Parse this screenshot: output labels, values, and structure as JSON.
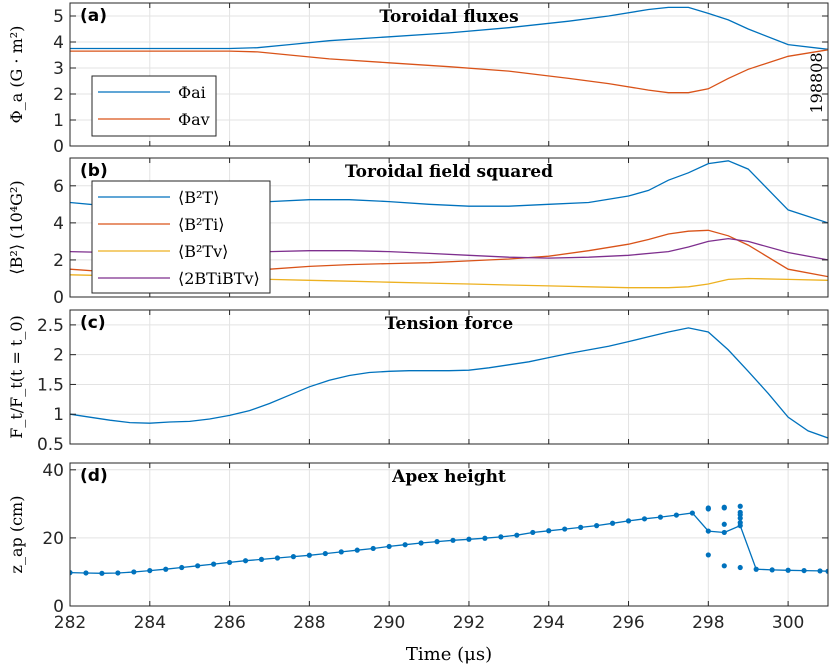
{
  "chart_data": [
    {
      "type": "line",
      "panel_label": "(a)",
      "title": "Toroidal fluxes",
      "ylabel": "Φ_a (G · m²)",
      "ylim": [
        0,
        5.5
      ],
      "yticks": [
        0,
        1,
        2,
        3,
        4,
        5
      ],
      "xlim": [
        282,
        301
      ],
      "annotation": "198808",
      "legend": "top-left",
      "series": [
        {
          "name": "Φ_ai",
          "legend_label": "Φai",
          "color": "#0072BD",
          "x": [
            282,
            283,
            284,
            285,
            286,
            286.7,
            287.5,
            288.5,
            290,
            291.5,
            293,
            294.5,
            295.5,
            296.5,
            297,
            297.5,
            298,
            298.5,
            299,
            300,
            301
          ],
          "y": [
            3.75,
            3.75,
            3.75,
            3.75,
            3.75,
            3.78,
            3.9,
            4.05,
            4.2,
            4.35,
            4.55,
            4.8,
            5.0,
            5.25,
            5.33,
            5.33,
            5.1,
            4.85,
            4.5,
            3.9,
            3.72
          ]
        },
        {
          "name": "Φ_av",
          "legend_label": "Φav",
          "color": "#D95319",
          "x": [
            282,
            283,
            284,
            285,
            286,
            286.7,
            287.5,
            288.5,
            290,
            291.5,
            293,
            294.5,
            295.5,
            296.5,
            297,
            297.5,
            298,
            298.5,
            299,
            300,
            301
          ],
          "y": [
            3.65,
            3.65,
            3.65,
            3.65,
            3.65,
            3.62,
            3.5,
            3.35,
            3.2,
            3.05,
            2.88,
            2.6,
            2.4,
            2.15,
            2.05,
            2.05,
            2.2,
            2.6,
            2.95,
            3.45,
            3.7
          ]
        }
      ]
    },
    {
      "type": "line",
      "panel_label": "(b)",
      "title": "Toroidal field squared",
      "ylabel": "⟨B²⟩ (10⁴G²)",
      "ylim": [
        0,
        7.5
      ],
      "yticks": [
        0,
        2,
        4,
        6
      ],
      "xlim": [
        282,
        301
      ],
      "legend": "top-left",
      "series": [
        {
          "name": "⟨B_T²⟩",
          "legend_label": "⟨B²T⟩",
          "color": "#0072BD",
          "x": [
            282,
            283,
            284,
            285,
            286,
            287,
            288,
            289,
            290,
            291,
            292,
            293,
            294,
            295,
            296,
            296.5,
            297,
            297.5,
            298,
            298.5,
            299,
            300,
            301
          ],
          "y": [
            5.1,
            4.9,
            4.9,
            4.9,
            4.95,
            5.15,
            5.25,
            5.25,
            5.15,
            5.0,
            4.9,
            4.9,
            5.0,
            5.1,
            5.45,
            5.75,
            6.3,
            6.7,
            7.2,
            7.35,
            6.9,
            4.7,
            4.0
          ]
        },
        {
          "name": "⟨B_Ti²⟩",
          "legend_label": "⟨B²Ti⟩",
          "color": "#D95319",
          "x": [
            282,
            283,
            284,
            285,
            286,
            287,
            288,
            289,
            290,
            291,
            292,
            293,
            294,
            295,
            296,
            296.5,
            297,
            297.5,
            298,
            298.5,
            299,
            300,
            301
          ],
          "y": [
            1.5,
            1.35,
            1.3,
            1.3,
            1.35,
            1.5,
            1.65,
            1.75,
            1.8,
            1.85,
            1.95,
            2.05,
            2.2,
            2.5,
            2.85,
            3.1,
            3.4,
            3.55,
            3.6,
            3.3,
            2.8,
            1.5,
            1.1
          ]
        },
        {
          "name": "⟨B_Tv²⟩",
          "legend_label": "⟨B²Tv⟩",
          "color": "#EDB120",
          "x": [
            282,
            283,
            284,
            285,
            286,
            287,
            288,
            289,
            290,
            291,
            292,
            293,
            294,
            295,
            296,
            297,
            297.5,
            298,
            298.5,
            299,
            300,
            301
          ],
          "y": [
            1.2,
            1.15,
            1.1,
            1.05,
            1.0,
            0.95,
            0.9,
            0.85,
            0.8,
            0.75,
            0.7,
            0.65,
            0.6,
            0.55,
            0.5,
            0.5,
            0.55,
            0.7,
            0.95,
            1.0,
            0.95,
            0.9
          ]
        },
        {
          "name": "⟨2B_Ti B_Tv⟩",
          "legend_label": "⟨2BTiBTv⟩",
          "color": "#7E2F8E",
          "x": [
            282,
            283,
            284,
            285,
            286,
            287,
            288,
            289,
            290,
            291,
            292,
            293,
            294,
            295,
            296,
            297,
            297.5,
            298,
            298.5,
            299,
            300,
            301
          ],
          "y": [
            2.45,
            2.4,
            2.4,
            2.4,
            2.4,
            2.45,
            2.5,
            2.5,
            2.45,
            2.35,
            2.25,
            2.15,
            2.1,
            2.15,
            2.25,
            2.45,
            2.7,
            3.0,
            3.15,
            3.0,
            2.4,
            2.0
          ]
        }
      ]
    },
    {
      "type": "line",
      "panel_label": "(c)",
      "title": "Tension force",
      "ylabel": "F_t/F_t(t = t_0)",
      "ylim": [
        0.5,
        2.75
      ],
      "yticks": [
        0.5,
        1,
        1.5,
        2,
        2.5
      ],
      "xlim": [
        282,
        301
      ],
      "series": [
        {
          "name": "F_t/F_t(t=t0)",
          "color": "#0072BD",
          "x": [
            282,
            282.5,
            283,
            283.5,
            284,
            284.5,
            285,
            285.5,
            286,
            286.5,
            287,
            287.5,
            288,
            288.5,
            289,
            289.5,
            290,
            290.5,
            291,
            291.5,
            292,
            292.5,
            293,
            293.5,
            294,
            294.5,
            295,
            295.5,
            296,
            296.5,
            297,
            297.5,
            298,
            298.5,
            299,
            299.5,
            300,
            300.5,
            301
          ],
          "y": [
            1.0,
            0.95,
            0.9,
            0.86,
            0.85,
            0.87,
            0.88,
            0.92,
            0.98,
            1.06,
            1.18,
            1.32,
            1.46,
            1.57,
            1.65,
            1.7,
            1.72,
            1.73,
            1.73,
            1.73,
            1.74,
            1.78,
            1.83,
            1.88,
            1.95,
            2.02,
            2.08,
            2.14,
            2.22,
            2.3,
            2.38,
            2.45,
            2.38,
            2.08,
            1.72,
            1.35,
            0.95,
            0.72,
            0.6
          ]
        }
      ]
    },
    {
      "type": "line",
      "panel_label": "(d)",
      "title": "Apex height",
      "ylabel": "z_ap (cm)",
      "xlabel": "Time (μs)",
      "ylim": [
        0,
        42
      ],
      "yticks": [
        0,
        20,
        40
      ],
      "xlim": [
        282,
        301
      ],
      "xticks": [
        282,
        284,
        286,
        288,
        290,
        292,
        294,
        296,
        298,
        300
      ],
      "series": [
        {
          "name": "z_ap",
          "color": "#0072BD",
          "markers": true,
          "x": [
            282,
            282.4,
            282.8,
            283.2,
            283.6,
            284,
            284.4,
            284.8,
            285.2,
            285.6,
            286,
            286.4,
            286.8,
            287.2,
            287.6,
            288,
            288.4,
            288.8,
            289.2,
            289.6,
            290,
            290.4,
            290.8,
            291.2,
            291.6,
            292,
            292.4,
            292.8,
            293.2,
            293.6,
            294,
            294.4,
            294.8,
            295.2,
            295.6,
            296,
            296.4,
            296.8,
            297.2,
            297.6,
            298,
            298.4,
            298.8,
            299.2,
            299.6,
            300,
            300.4,
            300.8,
            301
          ],
          "y": [
            9.8,
            9.7,
            9.6,
            9.7,
            10.0,
            10.4,
            10.8,
            11.3,
            11.8,
            12.3,
            12.8,
            13.3,
            13.7,
            14.1,
            14.5,
            14.9,
            15.4,
            15.9,
            16.4,
            16.9,
            17.5,
            18.0,
            18.5,
            18.9,
            19.3,
            19.6,
            19.9,
            20.3,
            20.8,
            21.6,
            22.1,
            22.6,
            23.1,
            23.6,
            24.3,
            25.0,
            25.6,
            26.1,
            26.7,
            27.3,
            22.0,
            21.6,
            23.6,
            10.8,
            10.6,
            10.5,
            10.4,
            10.3,
            10.2
          ]
        }
      ],
      "scatter_points": {
        "x": [
          298,
          298,
          298,
          298.4,
          298.4,
          298.4,
          298.4,
          298.8,
          298.8,
          298.8,
          298.8,
          298.8,
          298.8
        ],
        "y": [
          15.0,
          28.5,
          28.8,
          11.8,
          24.0,
          28.8,
          29.0,
          11.3,
          24.5,
          25.8,
          26.8,
          27.5,
          29.3
        ]
      }
    }
  ]
}
